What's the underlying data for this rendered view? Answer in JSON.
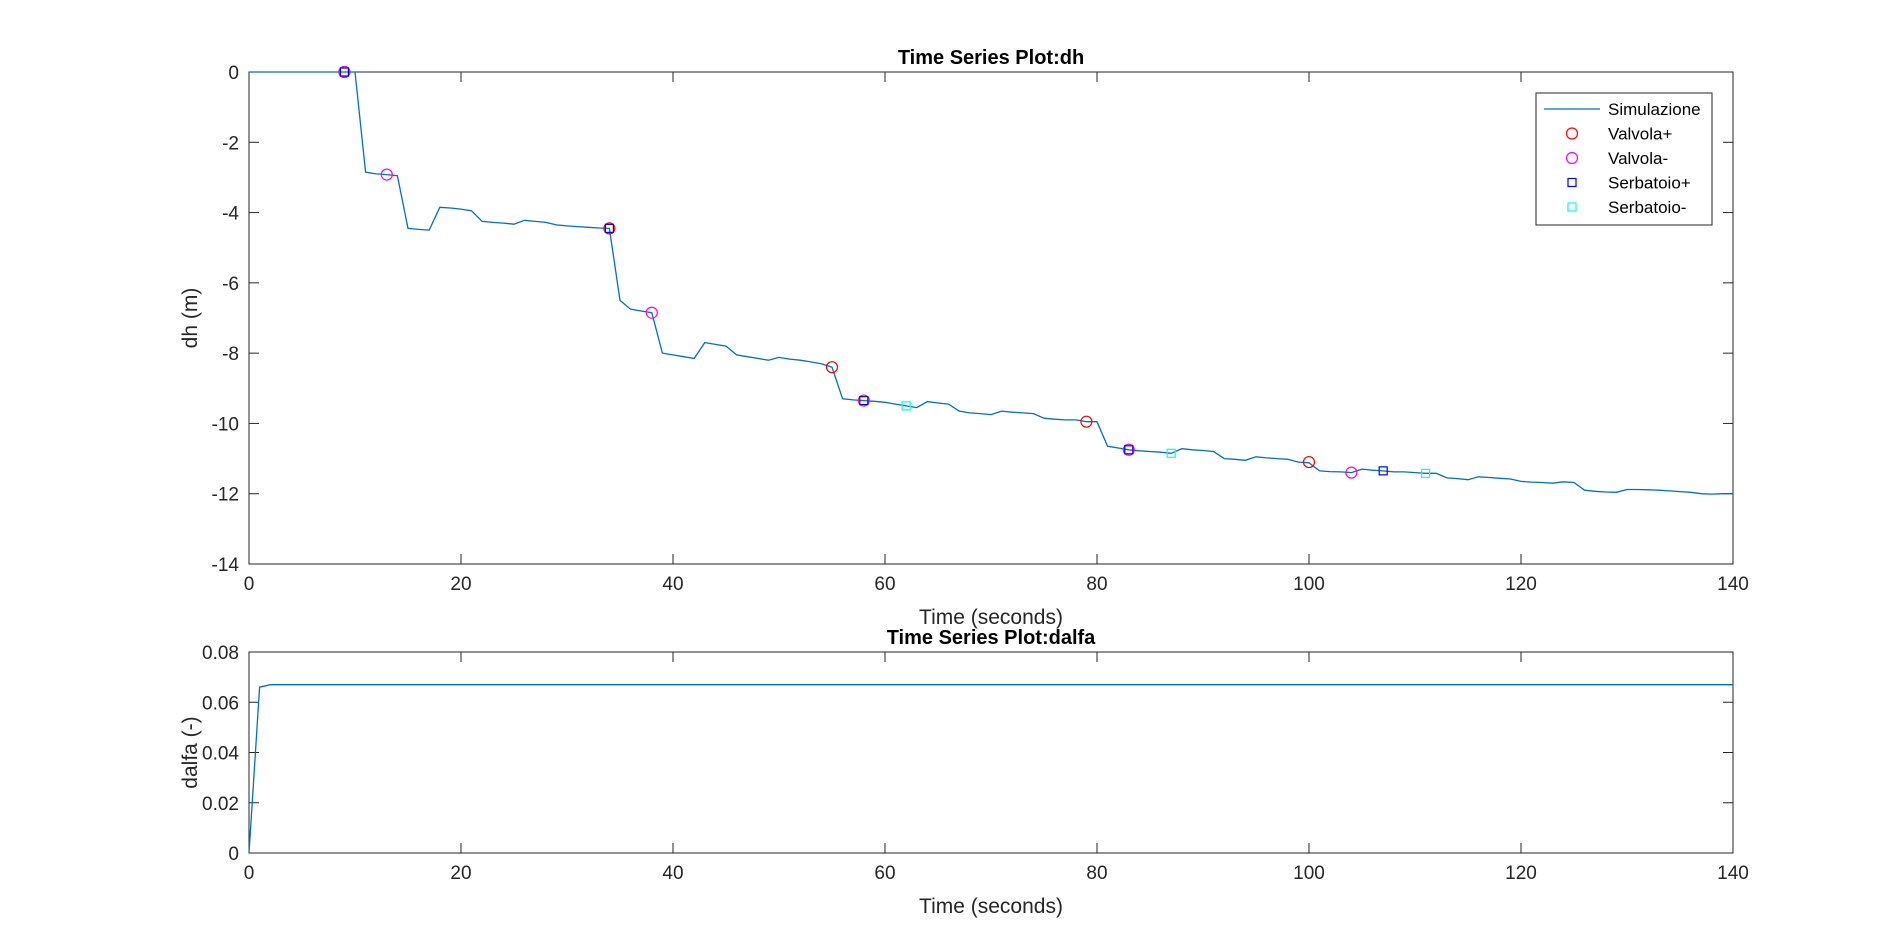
{
  "colors": {
    "line": "#0072BD",
    "valvola_plus": "#FF0000",
    "valvola_minus": "#FF00FF",
    "serbatoio_plus": "#0000FF",
    "serbatoio_minus": "#00FFFF",
    "axis": "#262626"
  },
  "chart_data": [
    {
      "id": "dh",
      "type": "line",
      "title": "Time Series Plot:dh",
      "xlabel": "Time (seconds)",
      "ylabel": "dh (m)",
      "xlim": [
        0,
        140
      ],
      "ylim": [
        -14,
        0
      ],
      "xticks": [
        0,
        20,
        40,
        60,
        80,
        100,
        120,
        140
      ],
      "yticks": [
        -14,
        -12,
        -10,
        -8,
        -6,
        -4,
        -2,
        0
      ],
      "legend_position": "top-right",
      "series": [
        {
          "name": "Simulazione",
          "kind": "line",
          "x": [
            0,
            9,
            10,
            11,
            12,
            13,
            14,
            15,
            16,
            17,
            18,
            19,
            20,
            21,
            22,
            23,
            24,
            25,
            26,
            27,
            28,
            29,
            30,
            31,
            32,
            33,
            34,
            35,
            36,
            37,
            38,
            39,
            40,
            41,
            42,
            43,
            44,
            45,
            46,
            47,
            48,
            49,
            50,
            51,
            52,
            53,
            54,
            55,
            56,
            57,
            58,
            59,
            60,
            61,
            62,
            63,
            64,
            65,
            66,
            67,
            68,
            69,
            70,
            71,
            72,
            73,
            74,
            75,
            76,
            77,
            78,
            79,
            80,
            81,
            82,
            83,
            84,
            85,
            86,
            87,
            88,
            89,
            90,
            91,
            92,
            93,
            94,
            95,
            96,
            97,
            98,
            99,
            100,
            101,
            102,
            103,
            104,
            105,
            106,
            107,
            108,
            109,
            110,
            111,
            112,
            113,
            114,
            115,
            116,
            117,
            118,
            119,
            120,
            121,
            122,
            123,
            124,
            125,
            126,
            127,
            128,
            129,
            130,
            131,
            132,
            133,
            134,
            135,
            136,
            137,
            138,
            139,
            140
          ],
          "y": [
            0,
            0,
            0,
            -2.85,
            -2.9,
            -2.92,
            -2.95,
            -4.45,
            -4.48,
            -4.5,
            -3.85,
            -3.87,
            -3.9,
            -3.95,
            -4.25,
            -4.28,
            -4.3,
            -4.33,
            -4.22,
            -4.25,
            -4.28,
            -4.35,
            -4.38,
            -4.4,
            -4.42,
            -4.44,
            -4.45,
            -6.5,
            -6.75,
            -6.8,
            -6.85,
            -8.0,
            -8.05,
            -8.1,
            -8.15,
            -7.7,
            -7.75,
            -7.8,
            -8.05,
            -8.1,
            -8.15,
            -8.2,
            -8.12,
            -8.17,
            -8.2,
            -8.25,
            -8.3,
            -8.4,
            -9.3,
            -9.33,
            -9.35,
            -9.37,
            -9.4,
            -9.45,
            -9.5,
            -9.55,
            -9.38,
            -9.42,
            -9.45,
            -9.65,
            -9.7,
            -9.72,
            -9.75,
            -9.65,
            -9.68,
            -9.7,
            -9.72,
            -9.85,
            -9.88,
            -9.9,
            -9.9,
            -9.95,
            -9.95,
            -10.65,
            -10.7,
            -10.75,
            -10.78,
            -10.8,
            -10.82,
            -10.85,
            -10.72,
            -10.75,
            -10.77,
            -10.8,
            -11.0,
            -11.02,
            -11.05,
            -10.95,
            -10.98,
            -11.0,
            -11.02,
            -11.1,
            -11.12,
            -11.35,
            -11.37,
            -11.38,
            -11.4,
            -11.3,
            -11.33,
            -11.35,
            -11.38,
            -11.38,
            -11.4,
            -11.42,
            -11.42,
            -11.55,
            -11.57,
            -11.6,
            -11.52,
            -11.54,
            -11.56,
            -11.58,
            -11.65,
            -11.67,
            -11.68,
            -11.7,
            -11.66,
            -11.68,
            -11.9,
            -11.93,
            -11.95,
            -11.96,
            -11.88,
            -11.88,
            -11.89,
            -11.9,
            -11.92,
            -11.94,
            -11.96,
            -12.0,
            -12.01,
            -12.0,
            -12.0
          ]
        },
        {
          "name": "Valvola+",
          "kind": "marker",
          "marker": "circle",
          "color_key": "valvola_plus",
          "x": [
            9,
            34,
            55,
            79,
            100
          ],
          "y": [
            0,
            -4.45,
            -8.4,
            -9.95,
            -11.1
          ]
        },
        {
          "name": "Valvola-",
          "kind": "marker",
          "marker": "circle",
          "color_key": "valvola_minus",
          "x": [
            9,
            13,
            38,
            58,
            83,
            104
          ],
          "y": [
            0,
            -2.92,
            -6.85,
            -9.35,
            -10.75,
            -11.4
          ]
        },
        {
          "name": "Serbatoio+",
          "kind": "marker",
          "marker": "square",
          "color_key": "serbatoio_plus",
          "x": [
            9,
            34,
            58,
            83,
            107
          ],
          "y": [
            0,
            -4.45,
            -9.35,
            -10.75,
            -11.35
          ]
        },
        {
          "name": "Serbatoio-",
          "kind": "marker",
          "marker": "square",
          "color_key": "serbatoio_minus",
          "x": [
            62,
            87,
            111
          ],
          "y": [
            -9.5,
            -10.85,
            -11.42
          ]
        }
      ]
    },
    {
      "id": "dalfa",
      "type": "line",
      "title": "Time Series Plot:dalfa",
      "xlabel": "Time (seconds)",
      "ylabel": "dalfa (-)",
      "xlim": [
        0,
        140
      ],
      "ylim": [
        0,
        0.08
      ],
      "xticks": [
        0,
        20,
        40,
        60,
        80,
        100,
        120,
        140
      ],
      "yticks": [
        0,
        0.02,
        0.04,
        0.06,
        0.08
      ],
      "series": [
        {
          "name": "dalfa",
          "kind": "line",
          "x": [
            0,
            1,
            2,
            140
          ],
          "y": [
            0,
            0.066,
            0.067,
            0.067
          ]
        }
      ]
    }
  ]
}
